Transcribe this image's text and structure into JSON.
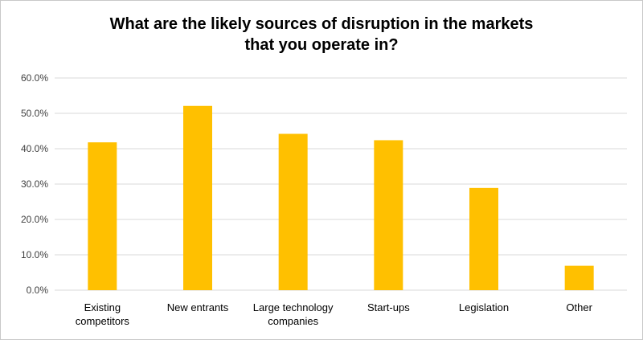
{
  "chart_data": {
    "type": "bar",
    "title_lines": [
      "What are the likely sources of disruption in the markets",
      "that you operate in?"
    ],
    "categories": [
      [
        "Existing",
        "competitors"
      ],
      [
        "New entrants"
      ],
      [
        "Large technology",
        "companies"
      ],
      [
        "Start-ups"
      ],
      [
        "Legislation"
      ],
      [
        "Other"
      ]
    ],
    "values": [
      41.8,
      52.1,
      44.2,
      42.4,
      28.9,
      6.9
    ],
    "y_ticks": [
      "0.0%",
      "10.0%",
      "20.0%",
      "30.0%",
      "40.0%",
      "50.0%",
      "60.0%"
    ],
    "ylim": [
      0,
      60
    ],
    "ytick_step": 10,
    "grid": true,
    "bar_color": "#FFC000",
    "grid_color": "#D9D9D9",
    "xlabel": "",
    "ylabel": ""
  }
}
